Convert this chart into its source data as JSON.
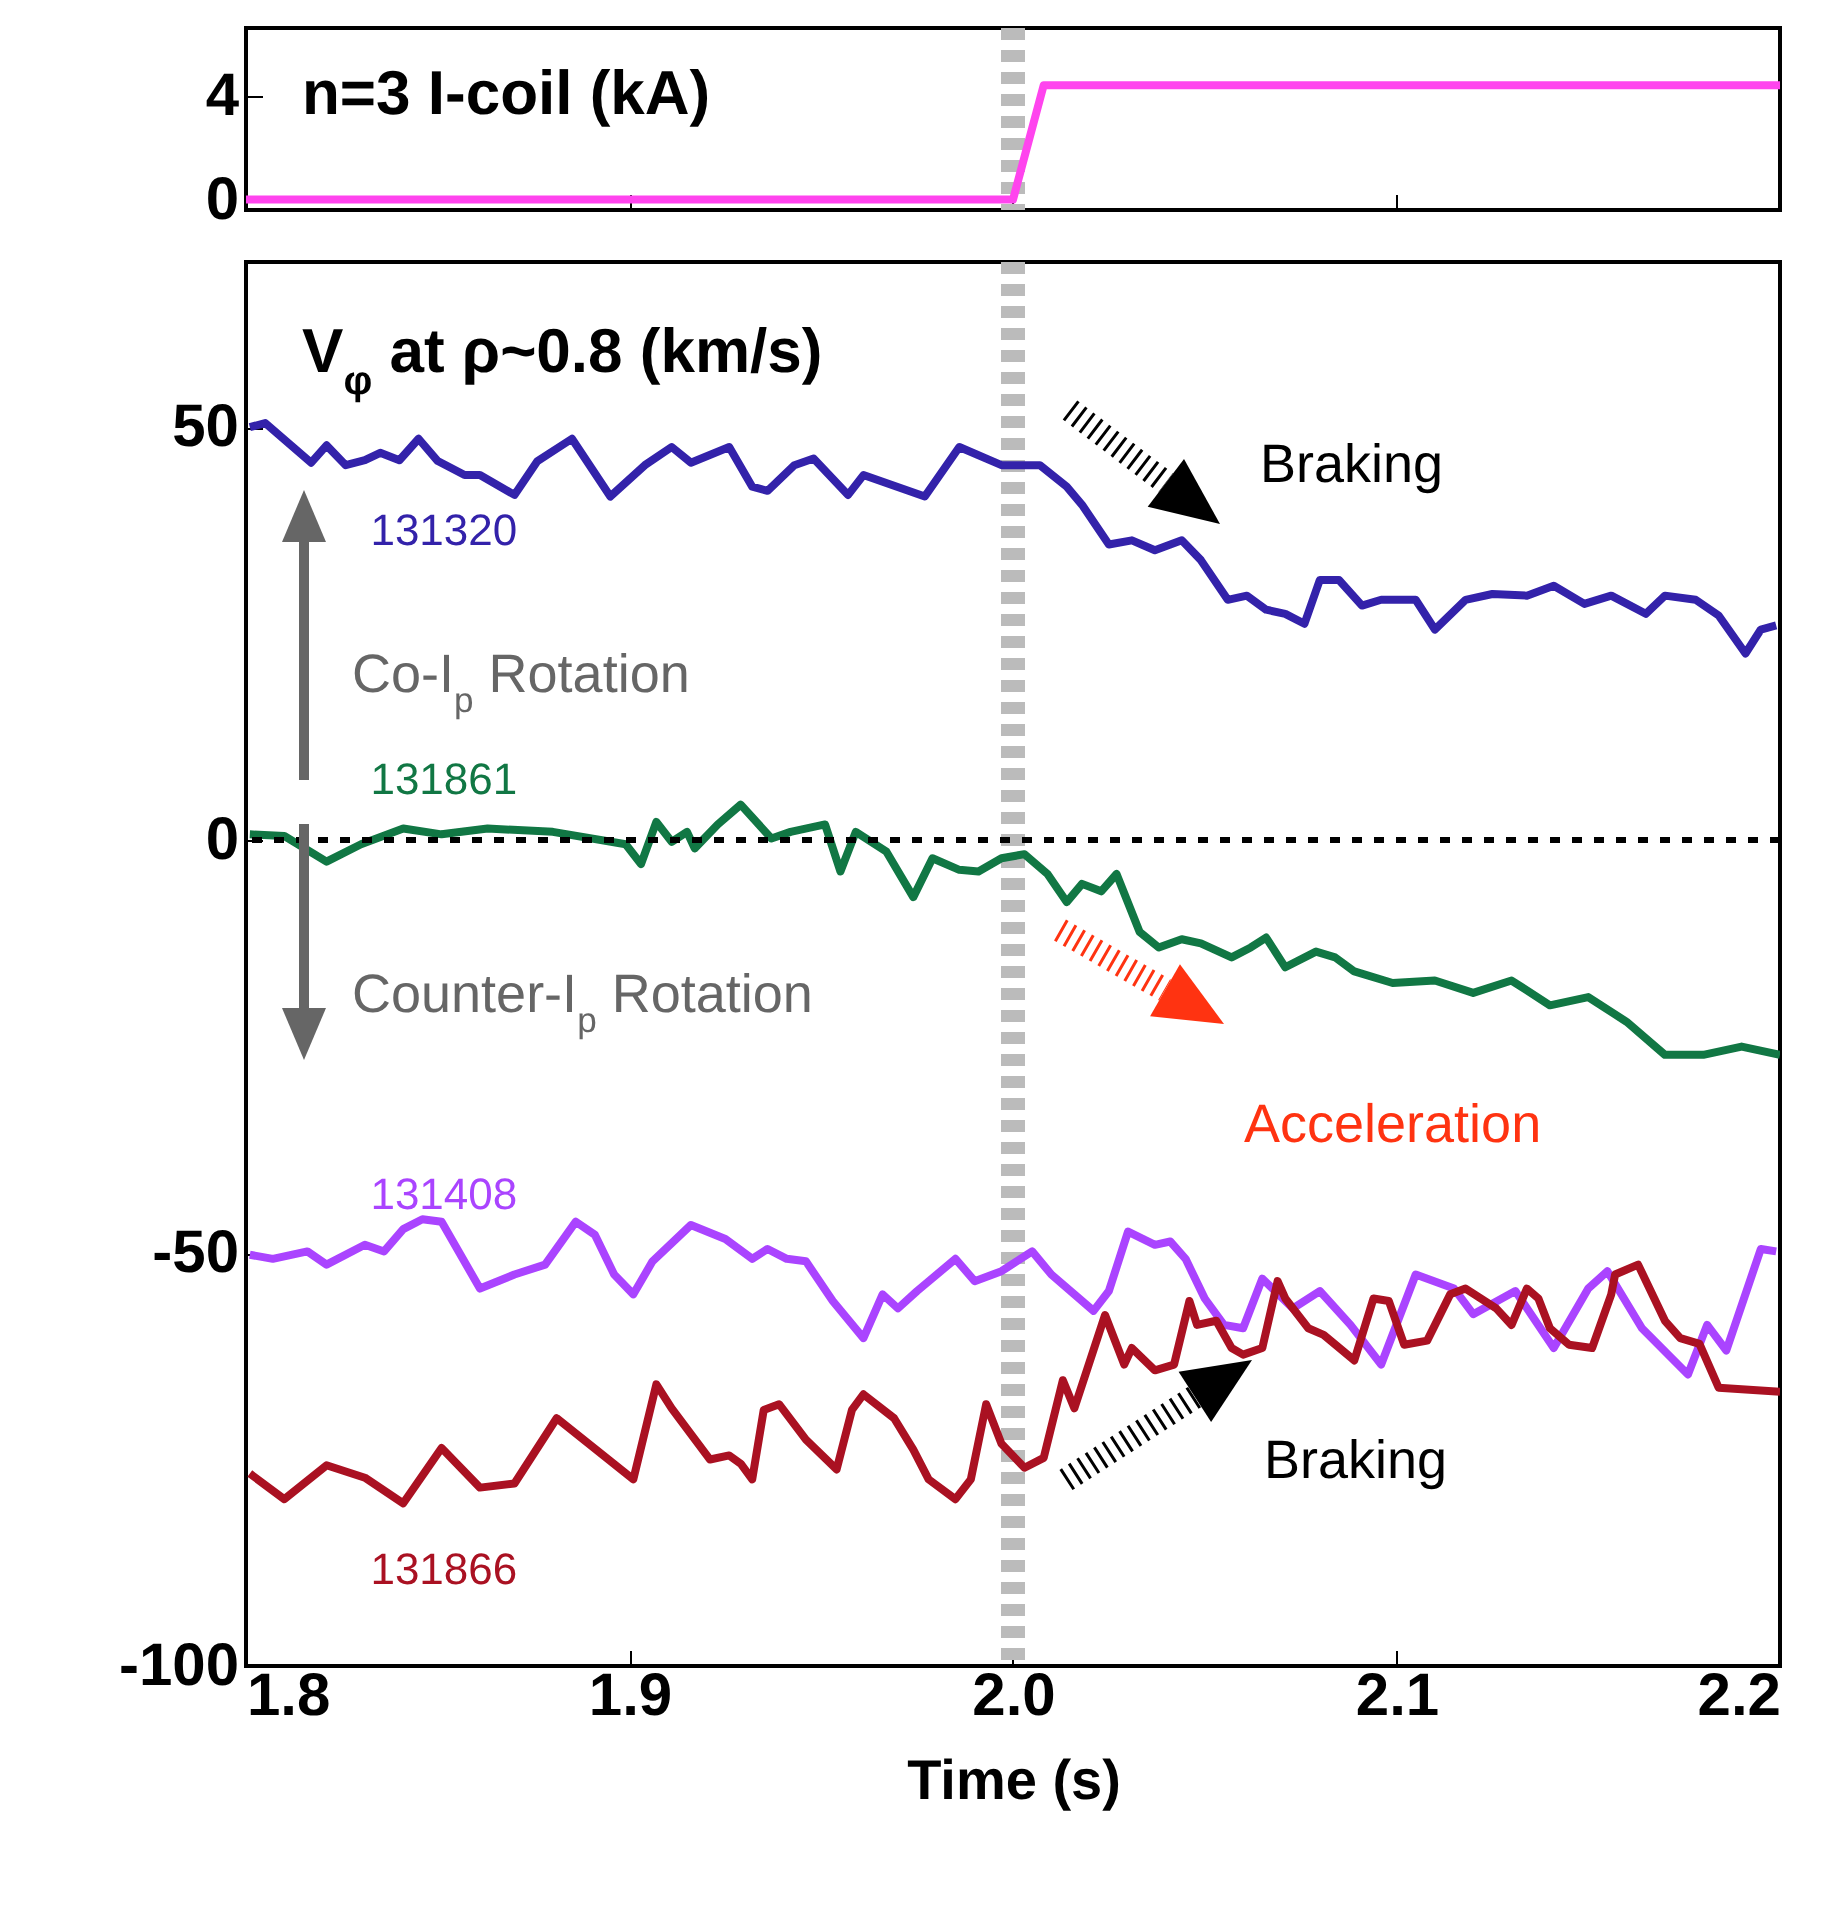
{
  "chart_data": [
    {
      "type": "line",
      "title": "n=3 I-coil (kA)",
      "xlim": [
        1.8,
        2.2
      ],
      "xticks": [
        1.8,
        1.9,
        2,
        2.1,
        2.2
      ],
      "ylim": [
        -0.4,
        6.6
      ],
      "yticks": [
        0,
        4
      ],
      "tick_labels": "y",
      "series": [
        {
          "color": "#ff44ee",
          "x": [
            1.8,
            1.9,
            2.0,
            2.008,
            2.1,
            2.2
          ],
          "values": [
            0,
            0,
            0,
            4.4,
            4.4,
            4.4
          ]
        }
      ],
      "ref_lines": [
        {
          "axis": "x",
          "value": 2.0,
          "color": "#bbbbbb",
          "line_style": "dashed"
        }
      ]
    },
    {
      "type": "line",
      "title": "V$_{φ}$ at ρ~0.8 (km/s)",
      "xlabel": "Time (s)",
      "xlim": [
        1.8,
        2.2
      ],
      "xticks": [
        1.8,
        1.9,
        {
          "value": 2,
          "label": "2.0"
        },
        2.1,
        2.2
      ],
      "ylim": [
        -100,
        70
      ],
      "yticks": [
        -100,
        -50,
        0,
        50
      ],
      "series": [
        {
          "name": "131320",
          "color": "#3322aa",
          "x": [
            1.801,
            1.805,
            1.817,
            1.821,
            1.826,
            1.831,
            1.835,
            1.84,
            1.845,
            1.85,
            1.857,
            1.861,
            1.87,
            1.876,
            1.885,
            1.895,
            1.904,
            1.911,
            1.916,
            1.926,
            1.932,
            1.936,
            1.943,
            1.948,
            1.957,
            1.961,
            1.977,
            1.986,
            1.997,
            2.007,
            2.014,
            2.018,
            2.025,
            2.031,
            2.037,
            2.044,
            2.049,
            2.056,
            2.061,
            2.066,
            2.071,
            2.076,
            2.08,
            2.085,
            2.091,
            2.096,
            2.105,
            2.11,
            2.118,
            2.125,
            2.134,
            2.141,
            2.149,
            2.156,
            2.165,
            2.17,
            2.178,
            2.184,
            2.191,
            2.195,
            2.199
          ],
          "values": [
            50,
            50.5,
            45.7,
            47.8,
            45.4,
            46,
            46.9,
            46,
            48.6,
            45.9,
            44.2,
            44.2,
            41.8,
            45.9,
            48.6,
            41.6,
            45.4,
            47.6,
            45.7,
            47.6,
            42.8,
            42.3,
            45.4,
            46.2,
            41.8,
            44.2,
            41.6,
            47.6,
            45.4,
            45.4,
            42.8,
            40.6,
            35.8,
            36.3,
            35.1,
            36.3,
            33.9,
            29.1,
            29.6,
            27.9,
            27.4,
            26.2,
            31.5,
            31.5,
            28.4,
            29.1,
            29.1,
            25.5,
            29.1,
            29.8,
            29.6,
            30.8,
            28.6,
            29.6,
            27.4,
            29.6,
            29.1,
            27.2,
            22.6,
            25.5,
            26
          ]
        },
        {
          "name": "131861",
          "color": "#117744",
          "x": [
            1.801,
            1.81,
            1.821,
            1.83,
            1.841,
            1.851,
            1.863,
            1.88,
            1.899,
            1.903,
            1.907,
            1.911,
            1.915,
            1.917,
            1.923,
            1.929,
            1.937,
            1.942,
            1.951,
            1.955,
            1.959,
            1.967,
            1.974,
            1.979,
            1.986,
            1.991,
            1.997,
            2.003,
            2.009,
            2.014,
            2.018,
            2.023,
            2.027,
            2.033,
            2.038,
            2.044,
            2.049,
            2.057,
            2.062,
            2.066,
            2.071,
            2.079,
            2.084,
            2.089,
            2.099,
            2.11,
            2.12,
            2.13,
            2.14,
            2.15,
            2.16,
            2.17,
            2.18,
            2.19,
            2.2
          ],
          "values": [
            0.7,
            0.5,
            -2.6,
            -0.5,
            1.4,
            0.7,
            1.4,
            1,
            -0.5,
            -2.9,
            2.2,
            -0.2,
            1,
            -1,
            1.9,
            4.3,
            0.2,
            1,
            1.9,
            -3.8,
            1,
            -1.4,
            -6.9,
            -2.2,
            -3.6,
            -3.8,
            -2.2,
            -1.7,
            -4.1,
            -7.5,
            -5.3,
            -6.2,
            -4.1,
            -11.1,
            -13,
            -12,
            -12.5,
            -14.2,
            -13,
            -11.8,
            -15.4,
            -13.5,
            -14.2,
            -15.9,
            -17.3,
            -17,
            -18.5,
            -17,
            -20,
            -19,
            -22,
            -26,
            -26,
            -25,
            -26
          ]
        },
        {
          "name": "131408",
          "color": "#aa44ff",
          "x": [
            1.801,
            1.807,
            1.816,
            1.821,
            1.831,
            1.836,
            1.841,
            1.846,
            1.851,
            1.861,
            1.87,
            1.878,
            1.886,
            1.891,
            1.896,
            1.901,
            1.906,
            1.916,
            1.925,
            1.932,
            1.936,
            1.941,
            1.946,
            1.953,
            1.961,
            1.966,
            1.97,
            1.975,
            1.985,
            1.99,
            1.997,
            2.005,
            2.01,
            2.021,
            2.025,
            2.03,
            2.037,
            2.041,
            2.045,
            2.05,
            2.055,
            2.06,
            2.065,
            2.073,
            2.08,
            2.088,
            2.096,
            2.105,
            2.115,
            2.12,
            2.131,
            2.141,
            2.15,
            2.155,
            2.164,
            2.176,
            2.181,
            2.186,
            2.195,
            2.199
          ],
          "values": [
            -50.2,
            -50.7,
            -49.8,
            -51.4,
            -49,
            -49.8,
            -47.1,
            -45.9,
            -46.2,
            -54.3,
            -52.6,
            -51.4,
            -46.2,
            -47.8,
            -52.6,
            -55,
            -51,
            -46.6,
            -48.3,
            -50.7,
            -49.5,
            -50.7,
            -51,
            -55.8,
            -60.3,
            -55,
            -56.7,
            -54.6,
            -50.7,
            -53.4,
            -52.2,
            -49.8,
            -52.6,
            -57,
            -54.6,
            -47.4,
            -49,
            -48.6,
            -50.7,
            -55.5,
            -58.7,
            -59.1,
            -53.1,
            -56.7,
            -54.6,
            -58.7,
            -63.5,
            -52.6,
            -54.3,
            -57.4,
            -54.6,
            -61.5,
            -54.3,
            -52.2,
            -59.1,
            -64.7,
            -58.7,
            -61.8,
            -49.5,
            -49.8
          ]
        },
        {
          "name": "131866",
          "color": "#aa1122",
          "x": [
            1.801,
            1.81,
            1.821,
            1.831,
            1.841,
            1.851,
            1.861,
            1.87,
            1.881,
            1.901,
            1.907,
            1.911,
            1.921,
            1.926,
            1.929,
            1.932,
            1.935,
            1.939,
            1.946,
            1.954,
            1.958,
            1.961,
            1.969,
            1.974,
            1.978,
            1.985,
            1.989,
            1.993,
            1.997,
            2.003,
            2.008,
            2.013,
            2.016,
            2.024,
            2.029,
            2.031,
            2.037,
            2.042,
            2.046,
            2.048,
            2.053,
            2.057,
            2.06,
            2.065,
            2.069,
            2.071,
            2.077,
            2.081,
            2.089,
            2.094,
            2.098,
            2.102,
            2.108,
            2.114,
            2.118,
            2.126,
            2.13,
            2.134,
            2.137,
            2.14,
            2.145,
            2.151,
            2.156,
            2.157,
            2.163,
            2.17,
            2.174,
            2.179,
            2.184,
            2.2
          ],
          "values": [
            -76.7,
            -79.8,
            -75.7,
            -77.2,
            -80.3,
            -73.6,
            -78.4,
            -77.9,
            -70,
            -77.4,
            -65.9,
            -68.8,
            -75,
            -74.5,
            -75.5,
            -77.4,
            -69,
            -68.3,
            -72.6,
            -76.2,
            -69,
            -67.1,
            -70,
            -73.8,
            -77.4,
            -79.8,
            -77.4,
            -68.3,
            -73.1,
            -76,
            -74.8,
            -65.4,
            -68.8,
            -57.5,
            -63.5,
            -61.5,
            -64.2,
            -63.5,
            -55.8,
            -58.7,
            -58.2,
            -61.5,
            -62.3,
            -61.5,
            -53.4,
            -55.5,
            -59.1,
            -59.9,
            -63,
            -55.5,
            -55.8,
            -61.1,
            -60.6,
            -55,
            -54.3,
            -56.7,
            -58.7,
            -54.3,
            -55.5,
            -59.1,
            -61.1,
            -61.5,
            -55,
            -52.6,
            -51.4,
            -58.2,
            -60.3,
            -61,
            -66.3,
            -66.8
          ]
        }
      ],
      "ref_lines": [
        {
          "axis": "x",
          "value": 2.0,
          "color": "#bbbbbb",
          "line_style": "dashed"
        },
        {
          "axis": "y",
          "value": 0,
          "color": "#000000",
          "line_style": "dotted"
        }
      ],
      "annotations": [
        "Co-I$_{p}$ Rotation",
        "Counter-I$_{p}$ Rotation",
        "Braking",
        "Acceleration",
        "Braking"
      ]
    }
  ]
}
